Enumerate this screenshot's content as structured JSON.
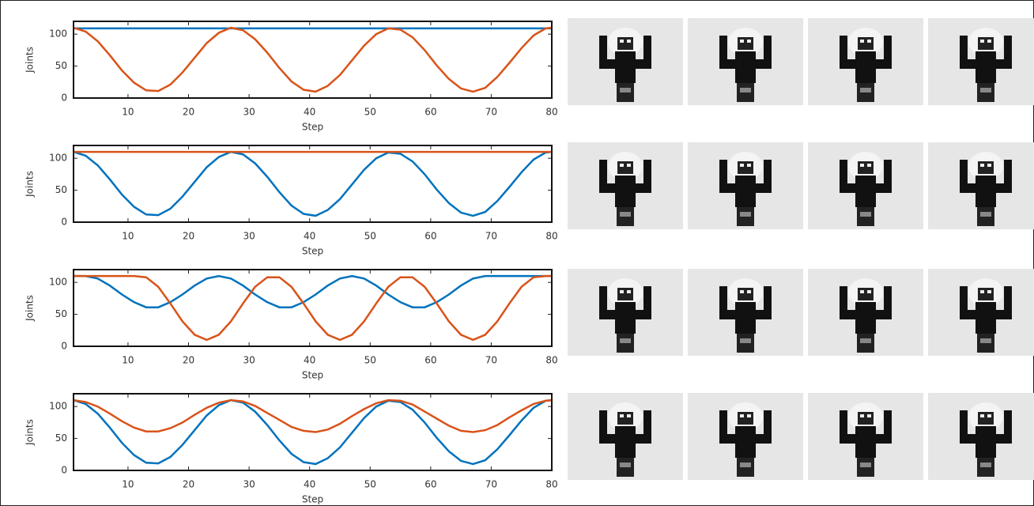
{
  "chart_data": [
    {
      "type": "line",
      "xlabel": "Step",
      "ylabel": "Joints",
      "x": [
        1,
        3,
        5,
        7,
        9,
        11,
        13,
        15,
        17,
        19,
        21,
        23,
        25,
        27,
        29,
        31,
        33,
        35,
        37,
        39,
        41,
        43,
        45,
        47,
        49,
        51,
        53,
        55,
        57,
        59,
        61,
        63,
        65,
        67,
        69,
        71,
        73,
        75,
        77,
        79,
        80
      ],
      "series": [
        {
          "color": "#0072bd",
          "values": [
            109,
            109,
            109,
            109,
            109,
            109,
            109,
            109,
            109,
            109,
            109,
            109,
            109,
            109,
            109,
            109,
            109,
            109,
            109,
            109,
            109,
            109,
            109,
            109,
            109,
            109,
            109,
            109,
            109,
            109,
            109,
            109,
            109,
            109,
            109,
            109,
            109,
            109,
            109,
            109,
            109
          ]
        },
        {
          "color": "#d95319",
          "values": [
            110,
            104,
            89,
            67,
            43,
            24,
            12,
            11,
            21,
            40,
            63,
            86,
            102,
            110,
            106,
            92,
            71,
            47,
            26,
            13,
            10,
            19,
            36,
            59,
            82,
            100,
            109,
            107,
            95,
            75,
            51,
            30,
            15,
            10,
            16,
            33,
            55,
            78,
            98,
            109,
            110
          ]
        }
      ],
      "xlim": [
        1,
        80
      ],
      "xticks": [
        10,
        20,
        30,
        40,
        50,
        60,
        70,
        80
      ],
      "ylim": [
        0,
        120
      ],
      "yticks": [
        0,
        50,
        100
      ]
    },
    {
      "type": "line",
      "xlabel": "Step",
      "ylabel": "Joints",
      "x": [
        1,
        3,
        5,
        7,
        9,
        11,
        13,
        15,
        17,
        19,
        21,
        23,
        25,
        27,
        29,
        31,
        33,
        35,
        37,
        39,
        41,
        43,
        45,
        47,
        49,
        51,
        53,
        55,
        57,
        59,
        61,
        63,
        65,
        67,
        69,
        71,
        73,
        75,
        77,
        79,
        80
      ],
      "series": [
        {
          "color": "#0072bd",
          "values": [
            110,
            104,
            89,
            67,
            43,
            24,
            12,
            11,
            21,
            40,
            63,
            86,
            102,
            110,
            106,
            92,
            71,
            47,
            26,
            13,
            10,
            19,
            36,
            59,
            82,
            100,
            109,
            107,
            95,
            75,
            51,
            30,
            15,
            10,
            16,
            33,
            55,
            78,
            98,
            109,
            110
          ]
        },
        {
          "color": "#d95319",
          "values": [
            110,
            110,
            110,
            110,
            110,
            110,
            110,
            110,
            110,
            110,
            110,
            110,
            110,
            110,
            110,
            110,
            110,
            110,
            110,
            110,
            110,
            110,
            110,
            110,
            110,
            110,
            110,
            110,
            110,
            110,
            110,
            110,
            110,
            110,
            110,
            110,
            110,
            110,
            110,
            110,
            110
          ]
        }
      ],
      "xlim": [
        1,
        80
      ],
      "xticks": [
        10,
        20,
        30,
        40,
        50,
        60,
        70,
        80
      ],
      "ylim": [
        0,
        120
      ],
      "yticks": [
        0,
        50,
        100
      ]
    },
    {
      "type": "line",
      "xlabel": "Step",
      "ylabel": "Joints",
      "x": [
        1,
        3,
        5,
        7,
        9,
        11,
        13,
        15,
        17,
        19,
        21,
        23,
        25,
        27,
        29,
        31,
        33,
        35,
        37,
        39,
        41,
        43,
        45,
        47,
        49,
        51,
        53,
        55,
        57,
        59,
        61,
        63,
        65,
        67,
        69,
        71,
        73,
        75,
        77,
        79,
        80
      ],
      "series": [
        {
          "color": "#0072bd",
          "values": [
            110,
            110,
            106,
            95,
            81,
            69,
            61,
            61,
            69,
            81,
            95,
            106,
            110,
            106,
            95,
            81,
            69,
            61,
            61,
            69,
            81,
            95,
            106,
            110,
            106,
            95,
            81,
            69,
            61,
            61,
            69,
            81,
            95,
            106,
            110,
            110,
            110,
            110,
            110,
            110,
            110
          ]
        },
        {
          "color": "#d95319",
          "values": [
            110,
            110,
            110,
            110,
            110,
            110,
            108,
            93,
            67,
            39,
            18,
            10,
            18,
            39,
            67,
            93,
            108,
            108,
            93,
            67,
            39,
            18,
            10,
            18,
            39,
            67,
            93,
            108,
            108,
            93,
            67,
            39,
            18,
            10,
            18,
            39,
            67,
            93,
            108,
            110,
            110
          ]
        }
      ],
      "xlim": [
        1,
        80
      ],
      "xticks": [
        10,
        20,
        30,
        40,
        50,
        60,
        70,
        80
      ],
      "ylim": [
        0,
        120
      ],
      "yticks": [
        0,
        50,
        100
      ]
    },
    {
      "type": "line",
      "xlabel": "Step",
      "ylabel": "Joints",
      "x": [
        1,
        3,
        5,
        7,
        9,
        11,
        13,
        15,
        17,
        19,
        21,
        23,
        25,
        27,
        29,
        31,
        33,
        35,
        37,
        39,
        41,
        43,
        45,
        47,
        49,
        51,
        53,
        55,
        57,
        59,
        61,
        63,
        65,
        67,
        69,
        71,
        73,
        75,
        77,
        79,
        80
      ],
      "series": [
        {
          "color": "#0072bd",
          "values": [
            110,
            104,
            89,
            67,
            43,
            24,
            12,
            11,
            21,
            40,
            63,
            86,
            102,
            110,
            106,
            92,
            71,
            47,
            26,
            13,
            10,
            19,
            36,
            59,
            82,
            100,
            109,
            107,
            95,
            75,
            51,
            30,
            15,
            10,
            16,
            33,
            55,
            78,
            98,
            109,
            110
          ]
        },
        {
          "color": "#d95319",
          "values": [
            110,
            107,
            100,
            89,
            77,
            67,
            61,
            61,
            66,
            75,
            87,
            98,
            106,
            110,
            108,
            101,
            90,
            79,
            68,
            62,
            60,
            64,
            73,
            85,
            96,
            105,
            110,
            109,
            103,
            92,
            81,
            70,
            62,
            60,
            63,
            71,
            83,
            94,
            104,
            109,
            110
          ]
        }
      ],
      "xlim": [
        1,
        80
      ],
      "xticks": [
        10,
        20,
        30,
        40,
        50,
        60,
        70,
        80
      ],
      "ylim": [
        0,
        120
      ],
      "yticks": [
        0,
        50,
        100
      ]
    }
  ]
}
